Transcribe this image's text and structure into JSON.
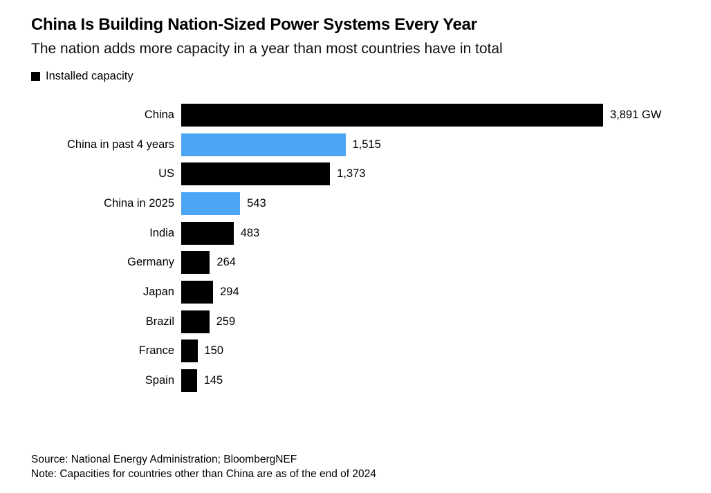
{
  "header": {
    "title": "China Is Building Nation-Sized Power Systems Every Year",
    "subtitle": "The nation adds more capacity in a year than most countries have in total"
  },
  "legend": {
    "label": "Installed capacity"
  },
  "colors": {
    "bar_default": "#000000",
    "bar_highlight": "#4DA6F5",
    "text": "#000000"
  },
  "chart_data": {
    "type": "bar",
    "orientation": "horizontal",
    "title": "China Is Building Nation-Sized Power Systems Every Year",
    "subtitle": "The nation adds more capacity in a year than most countries have in total",
    "unit": "GW",
    "legend": [
      "Installed capacity"
    ],
    "legend_position": "top-left",
    "grid": false,
    "xlim": [
      0,
      3891
    ],
    "categories": [
      "China",
      "China in past 4 years",
      "US",
      "China in 2025",
      "India",
      "Germany",
      "Japan",
      "Brazil",
      "France",
      "Spain"
    ],
    "values": [
      3891,
      1515,
      1373,
      543,
      483,
      264,
      294,
      259,
      150,
      145
    ],
    "value_labels": [
      "3,891 GW",
      "1,515",
      "1,373",
      "543",
      "483",
      "264",
      "294",
      "259",
      "150",
      "145"
    ],
    "bar_styles": [
      "default",
      "highlight",
      "default",
      "highlight",
      "default",
      "default",
      "default",
      "default",
      "default",
      "default"
    ],
    "highlighted_categories": [
      "China in past 4 years",
      "China in 2025"
    ]
  },
  "footer": {
    "source": "Source: National Energy Administration; BloombergNEF",
    "note": "Note: Capacities for countries other than China are as of the end of 2024"
  }
}
